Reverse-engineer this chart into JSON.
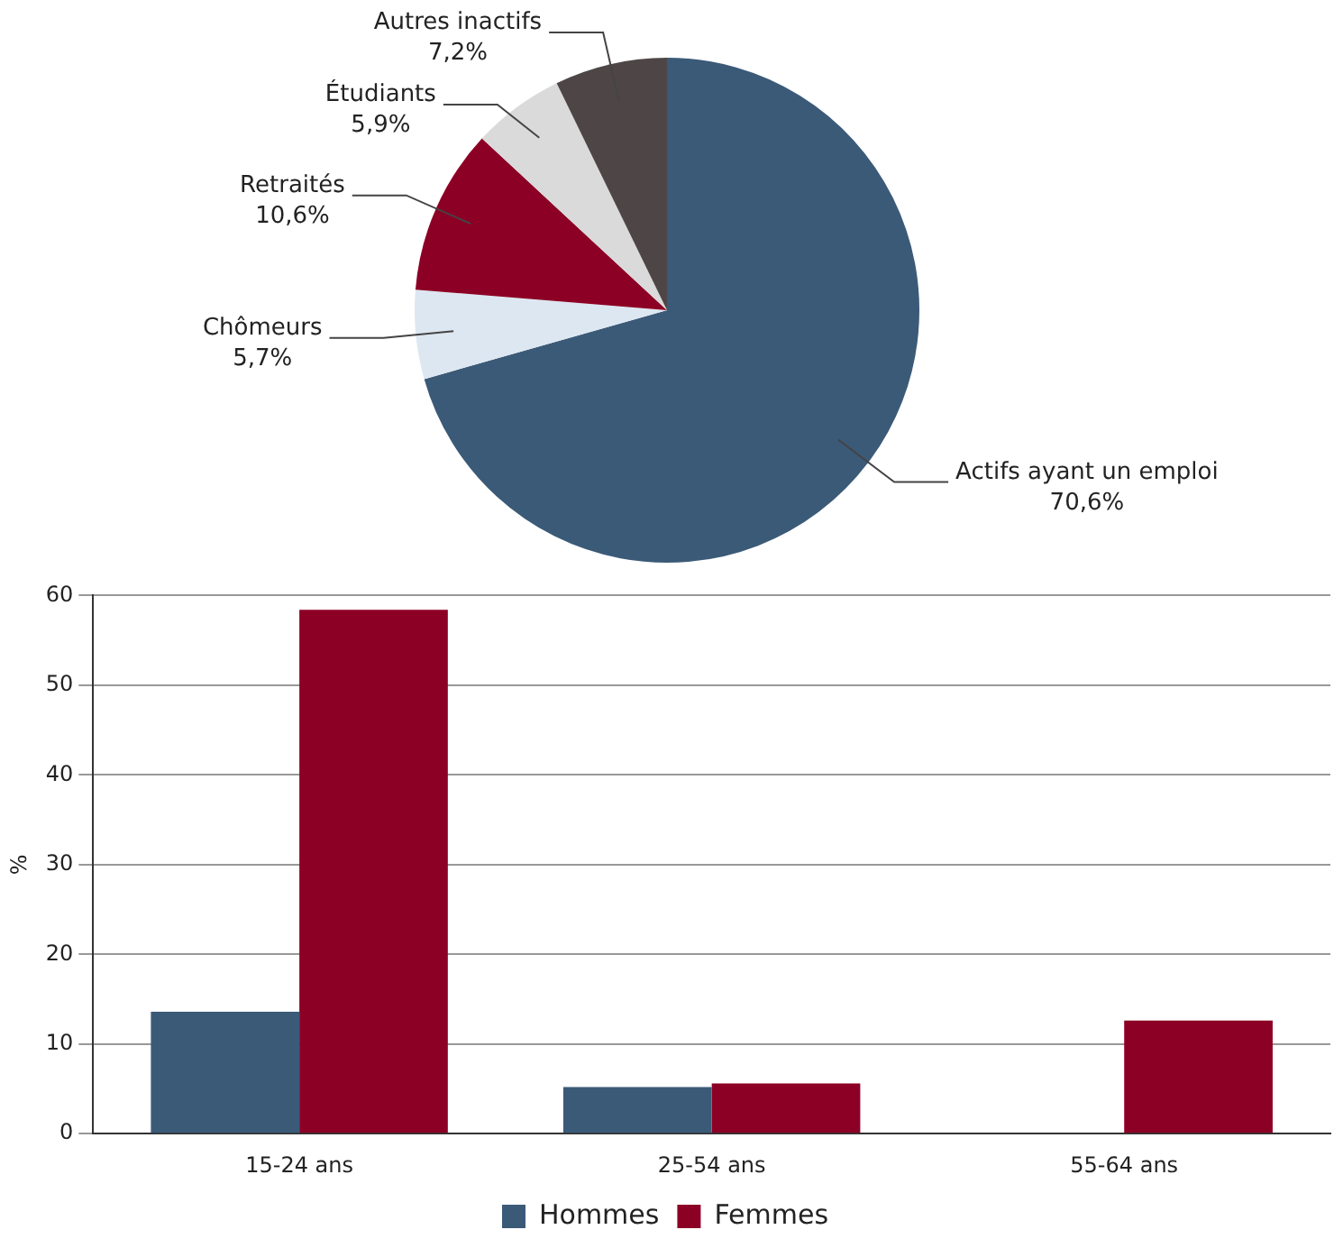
{
  "chart_data": [
    {
      "type": "pie",
      "categories": [
        "Actifs ayant un emploi",
        "Chômeurs",
        "Retraités",
        "Étudiants",
        "Autres inactifs"
      ],
      "values": [
        70.6,
        5.7,
        10.6,
        5.9,
        7.2
      ],
      "value_labels": [
        "70,6%",
        "5,7%",
        "10,6%",
        "5,9%",
        "7,2%"
      ],
      "colors": [
        "#3b5a78",
        "#dde7f1",
        "#8c0025",
        "#dadada",
        "#4e4646"
      ],
      "legend": false
    },
    {
      "type": "bar",
      "categories": [
        "15-24 ans",
        "25-54 ans",
        "55-64 ans"
      ],
      "ylabel": "%",
      "ylim": [
        0,
        60
      ],
      "yticks": [
        0,
        10,
        20,
        30,
        40,
        50,
        60
      ],
      "grid": "y",
      "legend": "bottom",
      "series": [
        {
          "name": "Hommes",
          "color": "#3b5a78",
          "values": [
            13.6,
            5.2,
            null
          ]
        },
        {
          "name": "Femmes",
          "color": "#8c0025",
          "values": [
            58.4,
            5.6,
            12.6
          ]
        }
      ]
    }
  ]
}
